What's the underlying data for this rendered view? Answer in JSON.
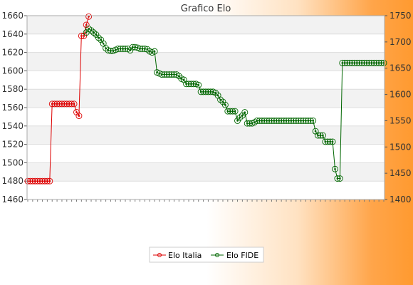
{
  "chart_data": {
    "type": "line",
    "title": "Grafico Elo",
    "grid": true,
    "legend_position": "bottom-center",
    "y_left": {
      "min": 1460,
      "max": 1660,
      "ticks": [
        1460,
        1480,
        1500,
        1520,
        1540,
        1560,
        1580,
        1600,
        1620,
        1640,
        1660
      ]
    },
    "y_right": {
      "min": 1400,
      "max": 1750,
      "ticks": [
        1400,
        1450,
        1500,
        1550,
        1600,
        1650,
        1700,
        1750
      ]
    },
    "x_tick_labels": [],
    "series": [
      {
        "name": "Elo Italia",
        "color": "#dd0000",
        "axis": "left",
        "values": [
          1480,
          1480,
          1480,
          1480,
          1480,
          1480,
          1480,
          1480,
          1480,
          1480,
          1564,
          1564,
          1564,
          1564,
          1564,
          1564,
          1564,
          1564,
          1564,
          1564,
          1555,
          1551,
          1638,
          1638,
          1650,
          1659
        ]
      },
      {
        "name": "Elo FIDE",
        "color": "#006600",
        "axis": "right",
        "start_index": 24,
        "values": [
          1718,
          1725,
          1722,
          1718,
          1714,
          1708,
          1704,
          1697,
          1688,
          1684,
          1683,
          1683,
          1685,
          1687,
          1687,
          1687,
          1687,
          1687,
          1684,
          1690,
          1690,
          1689,
          1687,
          1687,
          1687,
          1686,
          1682,
          1680,
          1682,
          1642,
          1640,
          1638,
          1638,
          1638,
          1638,
          1638,
          1638,
          1638,
          1635,
          1630,
          1628,
          1620,
          1620,
          1620,
          1620,
          1620,
          1618,
          1605,
          1605,
          1605,
          1605,
          1605,
          1605,
          1603,
          1598,
          1590,
          1586,
          1580,
          1568,
          1568,
          1568,
          1568,
          1550,
          1556,
          1560,
          1566,
          1545,
          1545,
          1545,
          1547,
          1550,
          1550,
          1550,
          1550,
          1550,
          1550,
          1550,
          1550,
          1550,
          1550,
          1550,
          1550,
          1550,
          1550,
          1550,
          1550,
          1550,
          1550,
          1550,
          1550,
          1550,
          1550,
          1550,
          1550,
          1530,
          1522,
          1522,
          1522,
          1510,
          1510,
          1510,
          1510,
          1458,
          1440,
          1440,
          1660,
          1660,
          1660,
          1660,
          1660,
          1660,
          1660,
          1660,
          1660,
          1660,
          1660,
          1660,
          1660,
          1660,
          1660,
          1660,
          1660,
          1660
        ]
      }
    ]
  }
}
